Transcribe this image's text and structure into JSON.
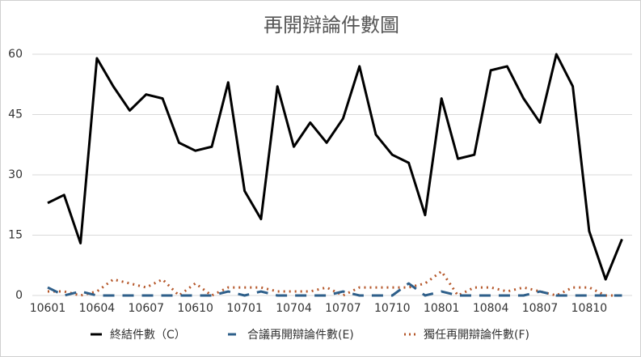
{
  "chart_data": {
    "type": "line",
    "title": "再開辯論件數圖",
    "categories": [
      "10601",
      null,
      null,
      "10604",
      null,
      null,
      "10607",
      null,
      null,
      "10610",
      null,
      null,
      "10701",
      null,
      null,
      "10704",
      null,
      null,
      "10707",
      null,
      null,
      "10710",
      null,
      null,
      "10801",
      null,
      null,
      "10804",
      null,
      null,
      "10807",
      null,
      null,
      "10810",
      null,
      null
    ],
    "series": [
      {
        "name": "終結件數（C）",
        "color": "#000000",
        "dash": "none",
        "values": [
          23,
          25,
          13,
          59,
          52,
          46,
          50,
          49,
          38,
          36,
          37,
          53,
          26,
          19,
          52,
          37,
          43,
          38,
          44,
          57,
          40,
          35,
          33,
          20,
          49,
          34,
          35,
          56,
          57,
          49,
          43,
          60,
          52,
          16,
          4,
          14
        ]
      },
      {
        "name": "合議再開辯論件數(E)",
        "color": "#2e5f8a",
        "dash": "14 10",
        "values": [
          2,
          0,
          1,
          0,
          0,
          0,
          0,
          0,
          0,
          0,
          0,
          1,
          0,
          1,
          0,
          0,
          0,
          0,
          1,
          0,
          0,
          0,
          3,
          0,
          1,
          0,
          0,
          0,
          0,
          0,
          1,
          0,
          0,
          0,
          0,
          0
        ]
      },
      {
        "name": "獨任再開辯論件數(F)",
        "color": "#b5572a",
        "dash": "2 5",
        "values": [
          1,
          1,
          0,
          1,
          4,
          3,
          2,
          4,
          0,
          3,
          0,
          2,
          2,
          2,
          1,
          1,
          1,
          2,
          0,
          2,
          2,
          2,
          2,
          3,
          6,
          0,
          2,
          2,
          1,
          2,
          1,
          0,
          2,
          2,
          0,
          0
        ]
      }
    ],
    "ylim": [
      0,
      60
    ],
    "yticks": [
      0,
      15,
      30,
      45,
      60
    ],
    "grid": true,
    "legend": "bottom"
  }
}
